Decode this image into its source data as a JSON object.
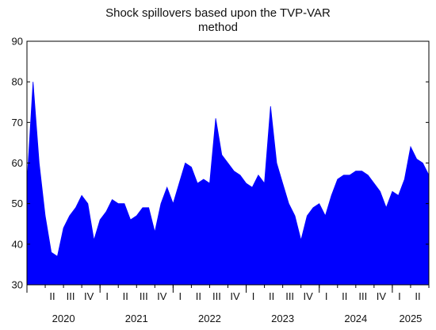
{
  "chart_data": {
    "type": "area",
    "title_lines": [
      "Shock spillovers based upon the TVP-VAR",
      "method"
    ],
    "xlabel": "",
    "ylabel": "",
    "ylim": [
      30,
      90
    ],
    "y_ticks": [
      30,
      40,
      50,
      60,
      70,
      80,
      90
    ],
    "grid": false,
    "fill_color": "#0000ff",
    "x_range": [
      "2020-01",
      "2025-07"
    ],
    "quarter_labels": [
      "II",
      "III",
      "IV",
      "I",
      "II",
      "III",
      "IV",
      "I",
      "II",
      "III",
      "IV",
      "I",
      "II",
      "III",
      "IV",
      "I",
      "II",
      "III",
      "IV",
      "I",
      "II"
    ],
    "year_labels": [
      "2020",
      "2021",
      "2022",
      "2023",
      "2024",
      "2025"
    ],
    "series": [
      {
        "x": [
          "2020-01",
          "2020-02",
          "2020-03",
          "2020-04",
          "2020-05",
          "2020-06",
          "2020-07",
          "2020-08",
          "2020-09",
          "2020-10",
          "2020-11",
          "2020-12",
          "2021-01",
          "2021-02",
          "2021-03",
          "2021-04",
          "2021-05",
          "2021-06",
          "2021-07",
          "2021-08",
          "2021-09",
          "2021-10",
          "2021-11",
          "2021-12",
          "2022-01",
          "2022-02",
          "2022-03",
          "2022-04",
          "2022-05",
          "2022-06",
          "2022-07",
          "2022-08",
          "2022-09",
          "2022-10",
          "2022-11",
          "2022-12",
          "2023-01",
          "2023-02",
          "2023-03",
          "2023-04",
          "2023-05",
          "2023-06",
          "2023-07",
          "2023-08",
          "2023-09",
          "2023-10",
          "2023-11",
          "2023-12",
          "2024-01",
          "2024-02",
          "2024-03",
          "2024-04",
          "2024-05",
          "2024-06",
          "2024-07",
          "2024-08",
          "2024-09",
          "2024-10",
          "2024-11",
          "2024-12",
          "2025-01",
          "2025-02",
          "2025-03",
          "2025-04",
          "2025-05",
          "2025-06",
          "2025-07"
        ],
        "values": [
          55,
          80,
          60,
          47,
          38,
          37,
          44,
          47,
          49,
          52,
          50,
          41,
          46,
          48,
          51,
          50,
          50,
          46,
          47,
          49,
          49,
          43,
          50,
          54,
          50,
          55,
          60,
          59,
          55,
          56,
          55,
          71,
          62,
          60,
          58,
          57,
          55,
          54,
          57,
          55,
          74,
          60,
          55,
          50,
          47,
          41,
          47,
          49,
          50,
          47,
          52,
          56,
          57,
          57,
          58,
          58,
          57,
          55,
          53,
          49,
          53,
          52,
          56,
          64,
          61,
          60,
          57
        ]
      }
    ]
  }
}
